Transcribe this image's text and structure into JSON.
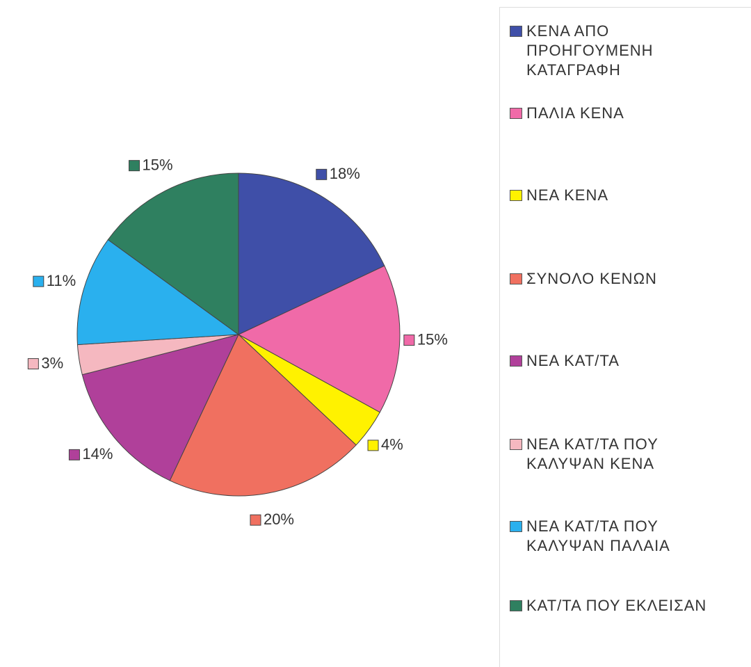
{
  "chart_data": {
    "type": "pie",
    "categories": [
      "ΚΕΝΑ ΑΠΟ ΠΡΟΗΓΟΥΜΕΝΗ ΚΑΤΑΓΡΑΦΗ",
      "ΠΑΛΙΑ ΚΕΝΑ",
      "ΝΕΑ ΚΕΝΑ",
      "ΣΥΝΟΛΟ ΚΕΝΩΝ",
      "ΝΕΑ ΚΑΤ/ΤΑ",
      "ΝΕΑ ΚΑΤ/ΤΑ ΠΟΥ ΚΑΛΥΨΑΝ ΚΕΝΑ",
      "ΝΕΑ ΚΑΤ/ΤΑ ΠΟΥ ΚΑΛΥΨΑΝ ΠΑΛΑΙΑ",
      "ΚΑΤ/ΤΑ ΠΟΥ ΕΚΛΕΙΣΑΝ"
    ],
    "values": [
      18,
      15,
      4,
      20,
      14,
      3,
      11,
      15
    ],
    "value_labels": [
      "18%",
      "15%",
      "4%",
      "20%",
      "14%",
      "3%",
      "11%",
      "15%"
    ],
    "colors": [
      "#3f4fa8",
      "#f06aa8",
      "#fff200",
      "#f07060",
      "#b0409a",
      "#f5b8c0",
      "#2ab0ee",
      "#2f8060"
    ]
  }
}
